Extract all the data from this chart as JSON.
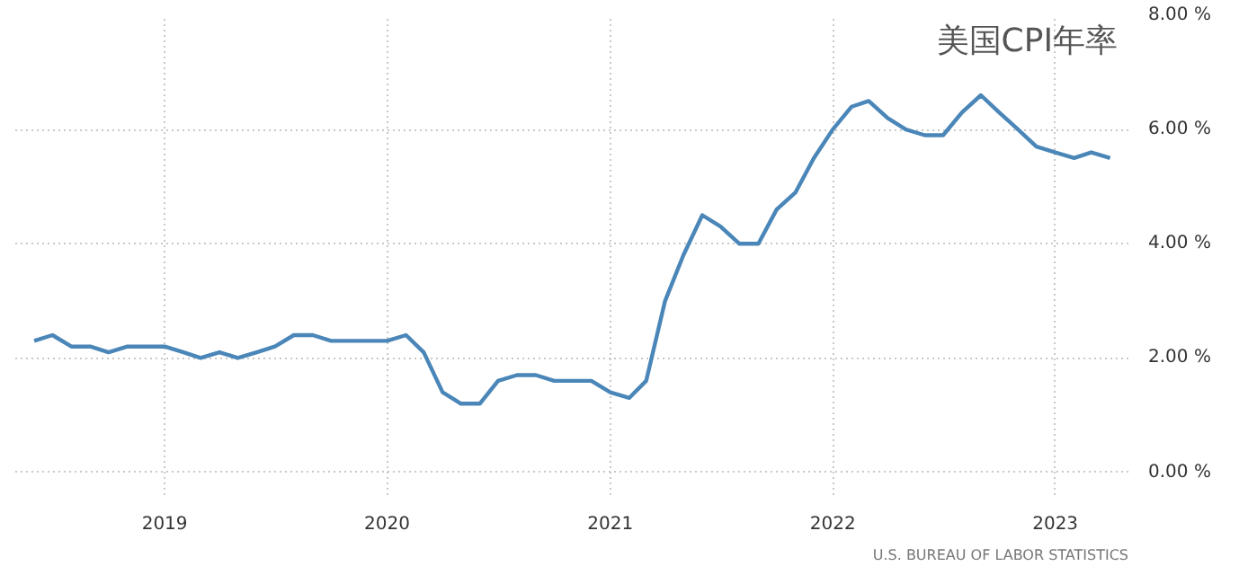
{
  "chart_data": {
    "type": "line",
    "title": "美国CPI年率",
    "annotations": [
      "U.S. BUREAU OF LABOR STATISTICS"
    ],
    "x": [
      "2018-06",
      "2018-07",
      "2018-08",
      "2018-09",
      "2018-10",
      "2018-11",
      "2018-12",
      "2019-01",
      "2019-02",
      "2019-03",
      "2019-04",
      "2019-05",
      "2019-06",
      "2019-07",
      "2019-08",
      "2019-09",
      "2019-10",
      "2019-11",
      "2019-12",
      "2020-01",
      "2020-02",
      "2020-03",
      "2020-04",
      "2020-05",
      "2020-06",
      "2020-07",
      "2020-08",
      "2020-09",
      "2020-10",
      "2020-11",
      "2020-12",
      "2021-01",
      "2021-02",
      "2021-03",
      "2021-04",
      "2021-05",
      "2021-06",
      "2021-07",
      "2021-08",
      "2021-09",
      "2021-10",
      "2021-11",
      "2021-12",
      "2022-01",
      "2022-02",
      "2022-03",
      "2022-04",
      "2022-05",
      "2022-06",
      "2022-07",
      "2022-08",
      "2022-09",
      "2022-10",
      "2022-11",
      "2022-12",
      "2023-01",
      "2023-02",
      "2023-03",
      "2023-04"
    ],
    "series": [
      {
        "color": "#4a86b8",
        "values": [
          2.3,
          2.4,
          2.2,
          2.2,
          2.1,
          2.2,
          2.2,
          2.2,
          2.1,
          2.0,
          2.1,
          2.0,
          2.1,
          2.2,
          2.4,
          2.4,
          2.3,
          2.3,
          2.3,
          2.3,
          2.4,
          2.1,
          1.4,
          1.2,
          1.2,
          1.6,
          1.7,
          1.7,
          1.6,
          1.6,
          1.6,
          1.4,
          1.3,
          1.6,
          3.0,
          3.8,
          4.5,
          4.3,
          4.0,
          4.0,
          4.6,
          4.9,
          5.5,
          6.0,
          6.4,
          6.5,
          6.2,
          6.0,
          5.9,
          5.9,
          6.3,
          6.6,
          6.3,
          6.0,
          5.7,
          5.6,
          5.5,
          5.6,
          5.5
        ]
      }
    ],
    "xlim": [
      "2018-05",
      "2023-05"
    ],
    "xticks": [
      "2019",
      "2020",
      "2021",
      "2022",
      "2023"
    ],
    "ylim": [
      -0.4,
      8
    ],
    "yticks": [
      {
        "value": 0,
        "label": "0.00 %"
      },
      {
        "value": 2,
        "label": "2.00 %"
      },
      {
        "value": 4,
        "label": "4.00 %"
      },
      {
        "value": 6,
        "label": "6.00 %"
      },
      {
        "value": 8,
        "label": "8.00 %"
      }
    ],
    "grid": true,
    "marker": "none",
    "line_style": "solid"
  }
}
